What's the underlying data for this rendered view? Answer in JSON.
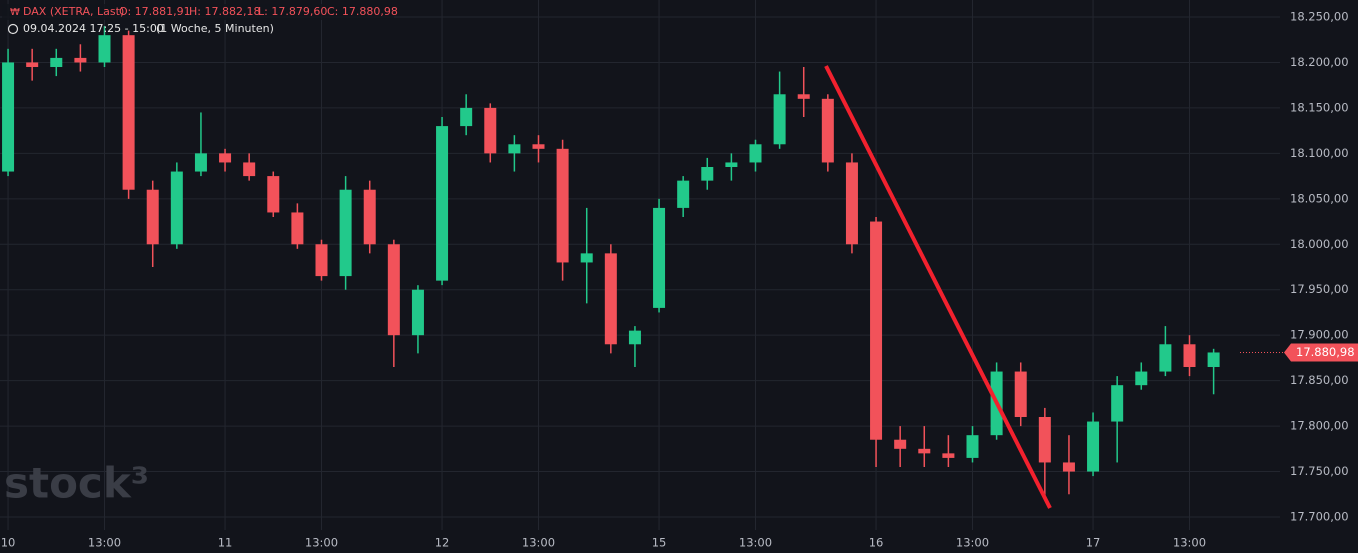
{
  "chart_data": {
    "type": "candlestick",
    "header": {
      "symbol": "DAX (XETRA, Last)",
      "open": "O: 17.881,91",
      "high": "H: 17.882,18",
      "low": "L: 17.879,60",
      "close": "C: 17.880,98",
      "period": "09.04.2024 17:25 - 15:00",
      "interval": "(1 Woche, 5 Minuten)"
    },
    "watermark": "stock³",
    "categories": [
      "10",
      null,
      null,
      null,
      "13:00",
      null,
      null,
      null,
      null,
      "11",
      null,
      null,
      null,
      "13:00",
      null,
      null,
      null,
      null,
      "12",
      null,
      null,
      null,
      "13:00",
      null,
      null,
      null,
      null,
      "15",
      null,
      null,
      null,
      "13:00",
      null,
      null,
      null,
      null,
      "16",
      null,
      null,
      null,
      "13:00",
      null,
      null,
      null,
      null,
      "17",
      null,
      null,
      null,
      "13:00",
      null
    ],
    "open": [
      18080,
      18200,
      18195,
      18205,
      18200,
      18230,
      18060,
      18000,
      18080,
      18100,
      18090,
      18075,
      18035,
      18000,
      17965,
      18060,
      18000,
      17900,
      17960,
      18130,
      18150,
      18100,
      18110,
      18105,
      17980,
      17990,
      17890,
      17930,
      18040,
      18070,
      18085,
      18090,
      18110,
      18165,
      18160,
      18090,
      18025,
      17785,
      17775,
      17770,
      17765,
      17790,
      17860,
      17810,
      17760,
      17750,
      17805,
      17845,
      17860,
      17890,
      17865
    ],
    "high": [
      18215,
      18215,
      18215,
      18220,
      18240,
      18235,
      18070,
      18090,
      18145,
      18105,
      18100,
      18080,
      18045,
      18005,
      18075,
      18070,
      18005,
      17955,
      18140,
      18165,
      18155,
      18120,
      18120,
      18115,
      18040,
      18000,
      17910,
      18050,
      18075,
      18095,
      18100,
      18115,
      18190,
      18195,
      18165,
      18100,
      18030,
      17800,
      17800,
      17790,
      17800,
      17870,
      17870,
      17820,
      17790,
      17815,
      17855,
      17870,
      17910,
      17900,
      17885
    ],
    "low": [
      18075,
      18180,
      18185,
      18190,
      18195,
      18050,
      17975,
      17995,
      18075,
      18080,
      18070,
      18030,
      17995,
      17960,
      17950,
      17990,
      17865,
      17880,
      17955,
      18120,
      18090,
      18080,
      18090,
      17960,
      17935,
      17880,
      17865,
      17925,
      18030,
      18060,
      18070,
      18080,
      18105,
      18140,
      18080,
      17990,
      17755,
      17755,
      17755,
      17755,
      17760,
      17785,
      17800,
      17720,
      17725,
      17745,
      17760,
      17840,
      17855,
      17855,
      17835
    ],
    "close": [
      18200,
      18195,
      18205,
      18200,
      18230,
      18060,
      18000,
      18080,
      18100,
      18090,
      18075,
      18035,
      18000,
      17965,
      18060,
      18000,
      17900,
      17950,
      18130,
      18150,
      18100,
      18110,
      18105,
      17980,
      17990,
      17890,
      17905,
      18040,
      18070,
      18085,
      18090,
      18110,
      18165,
      18160,
      18090,
      18000,
      17785,
      17775,
      17770,
      17765,
      17790,
      17860,
      17810,
      17760,
      17750,
      17805,
      17845,
      17860,
      17890,
      17865,
      17880.98
    ],
    "up_color": "#22c98b",
    "down_color": "#f2525a",
    "last": {
      "value": 17880.98,
      "label": "17.880,98"
    },
    "ylim": [
      17685.7,
      18268.7
    ],
    "yticks": [
      {
        "value": 17700,
        "label": "17.700,00"
      },
      {
        "value": 17750,
        "label": "17.750,00"
      },
      {
        "value": 17800,
        "label": "17.800,00"
      },
      {
        "value": 17850,
        "label": "17.850,00"
      },
      {
        "value": 17900,
        "label": "17.900,00"
      },
      {
        "value": 17950,
        "label": "17.950,00"
      },
      {
        "value": 18000,
        "label": "18.000,00"
      },
      {
        "value": 18050,
        "label": "18.050,00"
      },
      {
        "value": 18100,
        "label": "18.100,00"
      },
      {
        "value": 18150,
        "label": "18.150,00"
      },
      {
        "value": 18200,
        "label": "18.200,00"
      },
      {
        "value": 18250,
        "label": "18.250,00"
      }
    ],
    "grid": true
  }
}
